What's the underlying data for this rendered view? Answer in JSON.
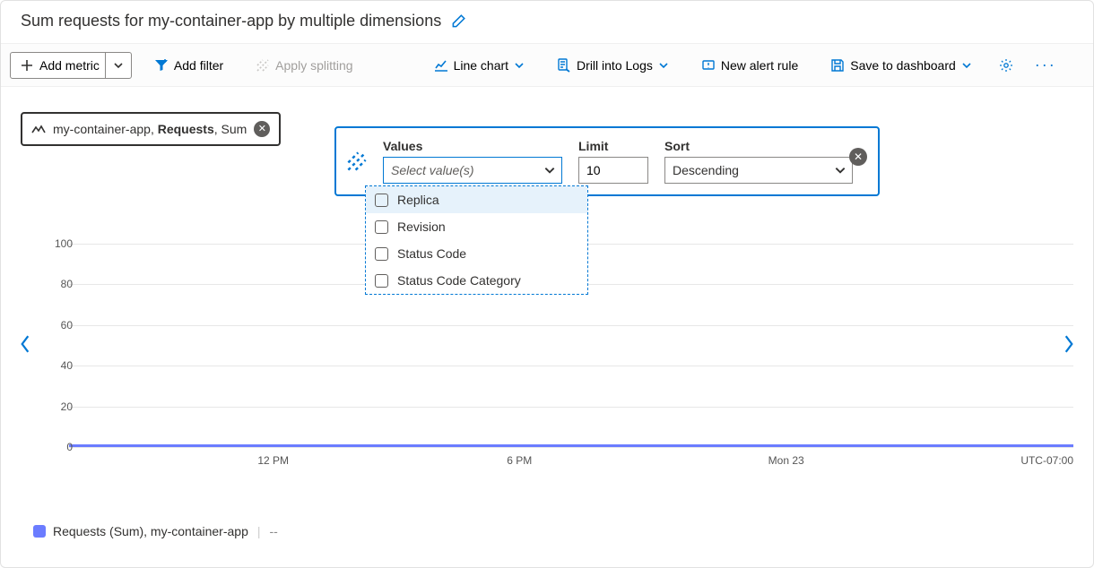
{
  "title": "Sum requests for my-container-app by multiple dimensions",
  "toolbar": {
    "add_metric": "Add metric",
    "add_filter": "Add filter",
    "apply_splitting": "Apply splitting",
    "line_chart": "Line chart",
    "drill_logs": "Drill into Logs",
    "new_alert": "New alert rule",
    "save_dashboard": "Save to dashboard"
  },
  "metric_chip": {
    "resource": "my-container-app",
    "metric": "Requests",
    "aggregation": "Sum"
  },
  "split_popover": {
    "values_label": "Values",
    "values_placeholder": "Select value(s)",
    "limit_label": "Limit",
    "limit_value": "10",
    "sort_label": "Sort",
    "sort_value": "Descending",
    "options": [
      "Replica",
      "Revision",
      "Status Code",
      "Status Code Category"
    ]
  },
  "chart": {
    "type": "line",
    "ylim": [
      0,
      110
    ],
    "yticks": [
      0,
      20,
      40,
      60,
      80,
      100
    ],
    "xticks": [
      {
        "label": "12 PM",
        "pos": 0.22
      },
      {
        "label": "6 PM",
        "pos": 0.46
      },
      {
        "label": "Mon 23",
        "pos": 0.72
      }
    ],
    "timezone": "UTC-07:00",
    "series_color": "#6b7cff",
    "grid_color": "#e7e7e7",
    "background_color": "#ffffff",
    "constant_value": 0
  },
  "legend": {
    "swatch_color": "#6b7cff",
    "label": "Requests (Sum), my-container-app",
    "value": "--"
  }
}
